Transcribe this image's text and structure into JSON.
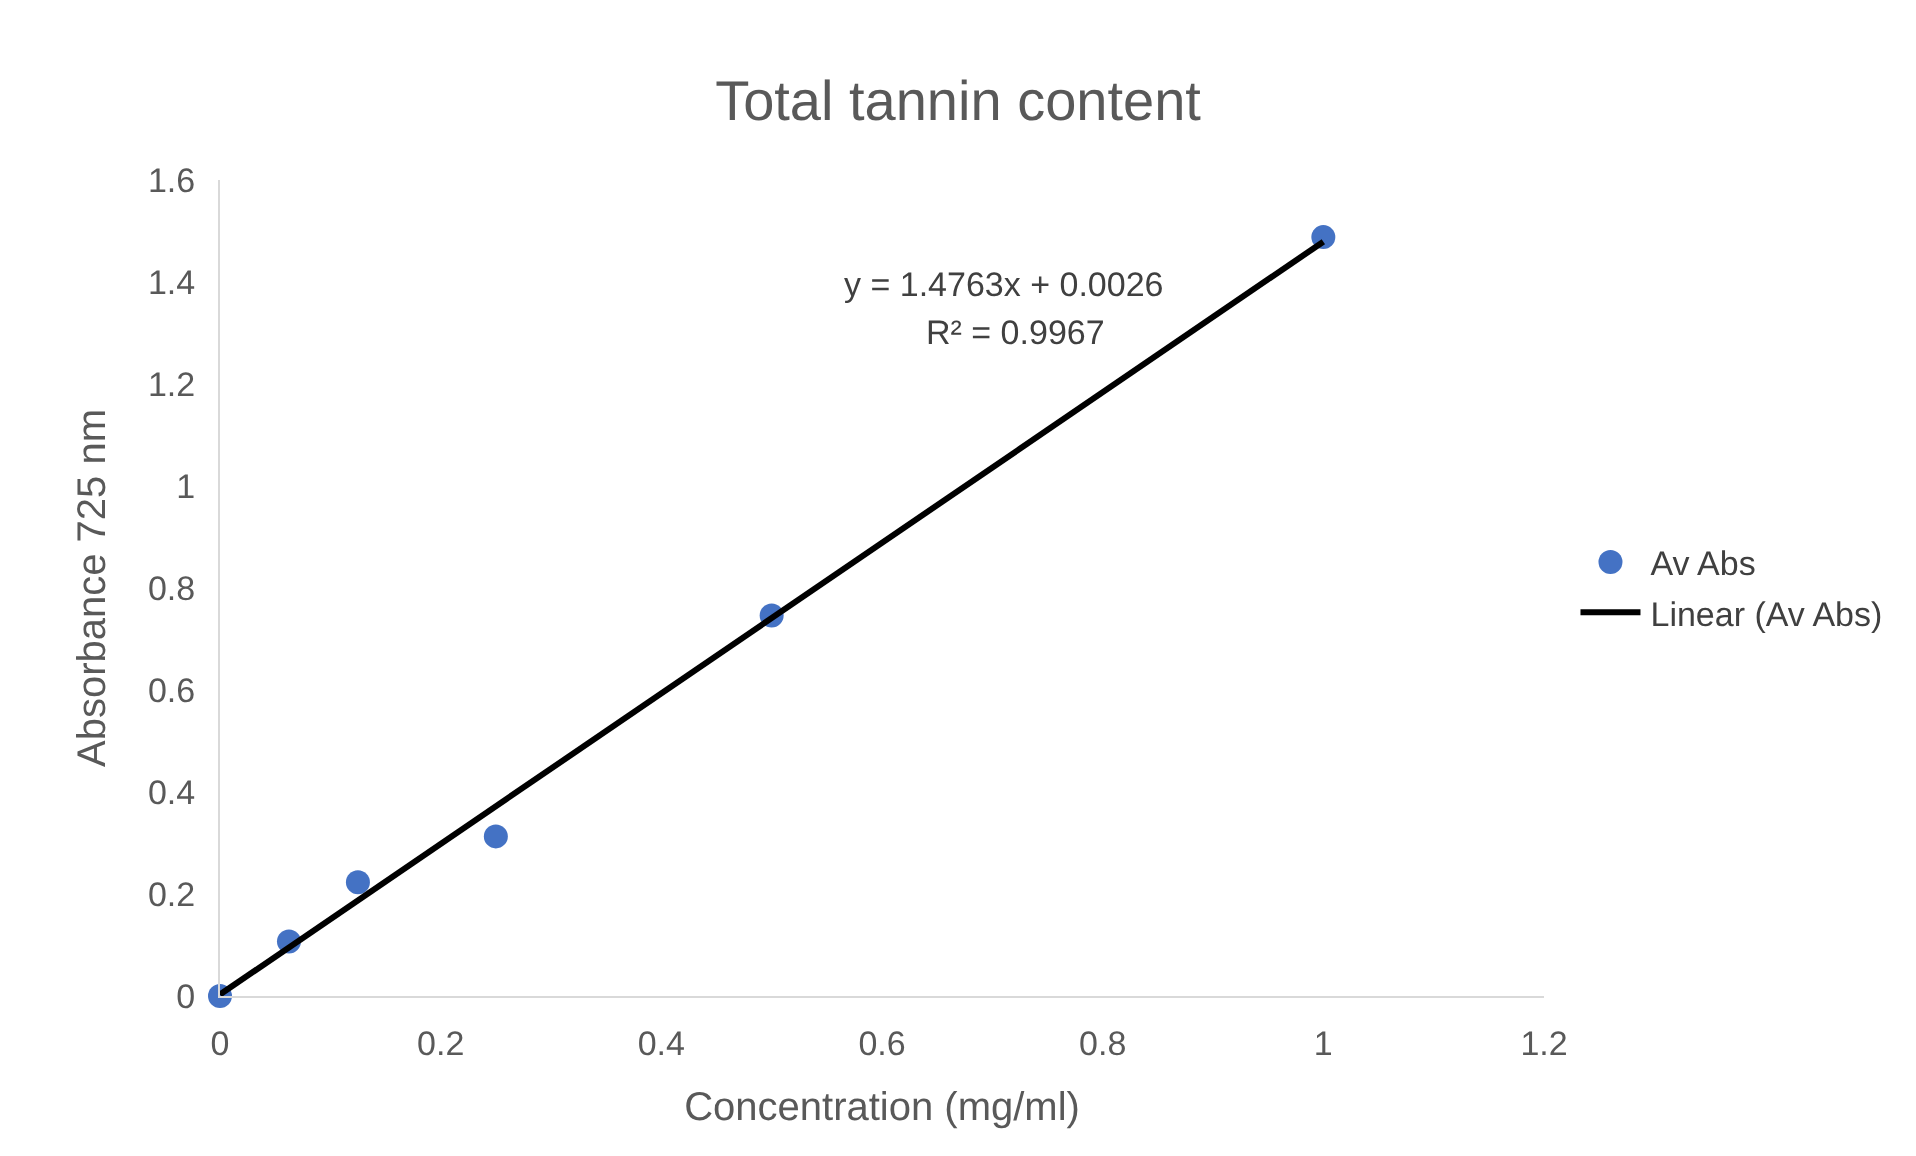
{
  "chart_data": {
    "type": "scatter",
    "title": "Total tannin content",
    "xlabel": "Concentration (mg/ml)",
    "ylabel": "Absorbance 725 nm",
    "series": [
      {
        "name": "Av Abs",
        "color": "#4472c4",
        "x": [
          0,
          0.0625,
          0.125,
          0.25,
          0.5,
          1
        ],
        "values": [
          0,
          0.107,
          0.223,
          0.313,
          0.746,
          1.488
        ],
        "marker": "circle"
      },
      {
        "name": "Linear (Av Abs)",
        "type": "line",
        "color": "#000000",
        "x": [
          0,
          1
        ],
        "values": [
          0.003,
          1.479
        ],
        "line_style": "solid"
      }
    ],
    "annotations": [
      "y = 1.4763x + 0.0026",
      "R² = 0.9967"
    ],
    "xlim": [
      0,
      1.2
    ],
    "xticks": [
      0,
      0.2,
      0.4,
      0.6,
      0.8,
      1,
      1.2
    ],
    "ylim": [
      0,
      1.6
    ],
    "yticks": [
      0,
      0.2,
      0.4,
      0.6,
      0.8,
      1,
      1.2,
      1.4,
      1.6
    ],
    "legend": "right"
  }
}
